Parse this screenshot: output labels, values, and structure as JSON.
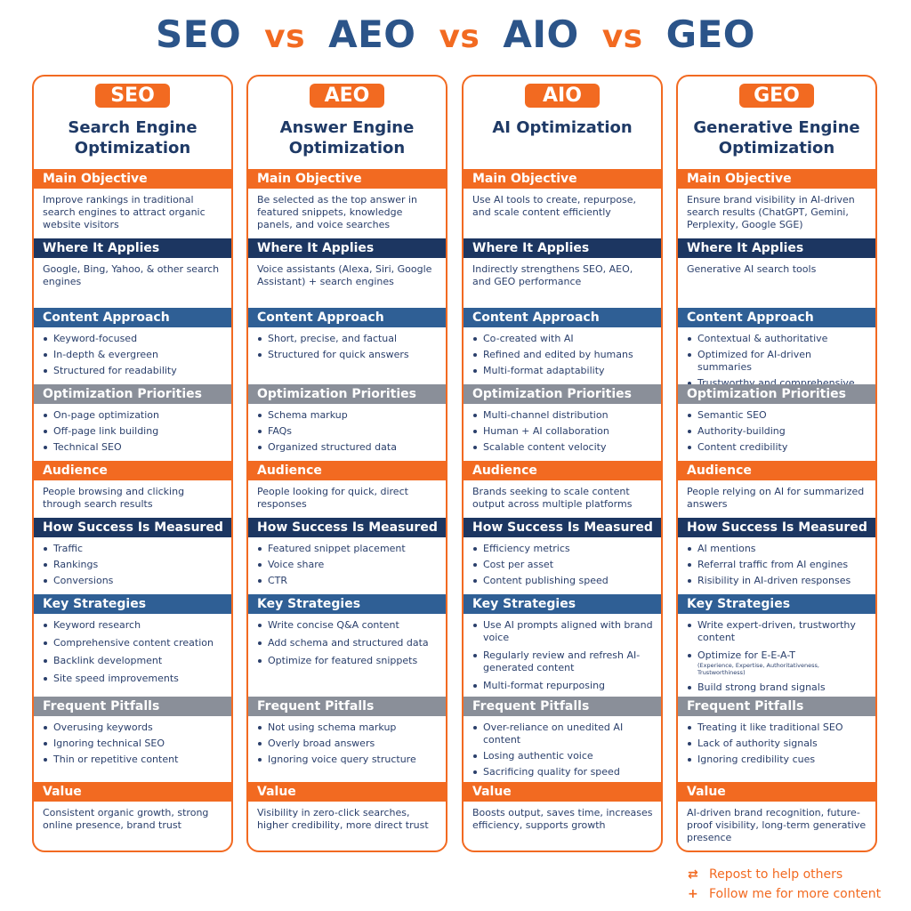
{
  "title": {
    "parts": [
      "SEO",
      "vs",
      "AEO",
      "vs",
      "AIO",
      "vs",
      "GEO"
    ]
  },
  "colors": {
    "orange": "#f26a21",
    "navy": "#1c3661",
    "blue": "#2f5f95",
    "gray": "#8a8f99",
    "title": "#2b5489"
  },
  "sections": [
    "Main Objective",
    "Where It Applies",
    "Content Approach",
    "Optimization Priorities",
    "Audience",
    "How Success Is Measured",
    "Key Strategies",
    "Frequent Pitfalls",
    "Value"
  ],
  "section_colors": [
    "orange",
    "navy",
    "blue",
    "gray",
    "orange",
    "navy",
    "blue",
    "gray",
    "orange"
  ],
  "columns": [
    {
      "badge": "SEO",
      "name": "Search Engine Optimization",
      "content": [
        "Improve rankings in traditional search engines to attract organic website visitors",
        "Google, Bing, Yahoo, & other search engines",
        [
          "Keyword-focused",
          "In-depth & evergreen",
          "Structured for readability"
        ],
        [
          "On-page optimization",
          "Off-page link building",
          "Technical SEO"
        ],
        "People browsing and clicking through search results",
        [
          "Traffic",
          "Rankings",
          "Conversions"
        ],
        [
          "Keyword research",
          "Comprehensive content creation",
          "Backlink development",
          "Site speed improvements"
        ],
        [
          "Overusing keywords",
          "Ignoring technical SEO",
          "Thin or repetitive content"
        ],
        "Consistent organic growth, strong online presence, brand trust"
      ]
    },
    {
      "badge": "AEO",
      "name": "Answer Engine Optimization",
      "content": [
        "Be selected as the top answer in featured snippets, knowledge panels, and voice searches",
        "Voice assistants (Alexa, Siri, Google Assistant) + search engines",
        [
          "Short, precise, and factual",
          "Structured for quick answers"
        ],
        [
          "Schema markup",
          "FAQs",
          "Organized structured data"
        ],
        "People looking for quick, direct responses",
        [
          "Featured snippet placement",
          "Voice share",
          "CTR"
        ],
        [
          "Write concise Q&A content",
          "Add schema and structured data",
          "Optimize for featured snippets"
        ],
        [
          "Not using schema markup",
          "Overly broad answers",
          "Ignoring voice query structure"
        ],
        "Visibility in zero-click searches, higher credibility, more direct trust"
      ]
    },
    {
      "badge": "AIO",
      "name": "AI Optimization",
      "content": [
        "Use AI tools to create, repurpose, and scale content efficiently",
        "Indirectly strengthens SEO, AEO, and GEO performance",
        [
          "Co-created with AI",
          "Refined and edited by humans",
          "Multi-format adaptability"
        ],
        [
          "Multi-channel distribution",
          "Human + AI collaboration",
          "Scalable content velocity"
        ],
        "Brands seeking to scale content output across multiple platforms",
        [
          "Efficiency metrics",
          "Cost per asset",
          "Content publishing speed"
        ],
        [
          "Use AI prompts aligned with brand voice",
          "Regularly review and refresh AI-generated content",
          "Multi-format repurposing"
        ],
        [
          "Over-reliance on unedited AI content",
          "Losing authentic voice",
          "Sacrificing quality for speed"
        ],
        "Boosts output, saves time, increases efficiency, supports growth"
      ]
    },
    {
      "badge": "GEO",
      "name": "Generative Engine Optimization",
      "content": [
        "Ensure brand visibility in AI-driven search results (ChatGPT, Gemini, Perplexity, Google SGE)",
        "Generative AI search tools",
        [
          "Contextual & authoritative",
          "Optimized for AI-driven summaries",
          "Trustworthy and comprehensive"
        ],
        [
          "Semantic SEO",
          "Authority-building",
          "Content credibility"
        ],
        "People relying on AI for summarized answers",
        [
          "AI mentions",
          "Referral traffic from AI engines",
          "Risibility in AI-driven responses"
        ],
        [
          "Write expert-driven, trustworthy content",
          "Optimize for E-E-A-T",
          "Build strong brand signals"
        ],
        [
          "Treating it like traditional SEO",
          "Lack of authority signals",
          "Ignoring credibility cues"
        ],
        "AI-driven brand recognition, future-proof visibility, long-term generative presence"
      ]
    }
  ],
  "eeat_note": "(Experience, Expertise, Authoritativeness, Trustworthiness)",
  "footer": {
    "repost": "Repost to help others",
    "follow": "Follow me for more content",
    "repost_icon": "repost-icon",
    "follow_icon": "plus-icon"
  }
}
